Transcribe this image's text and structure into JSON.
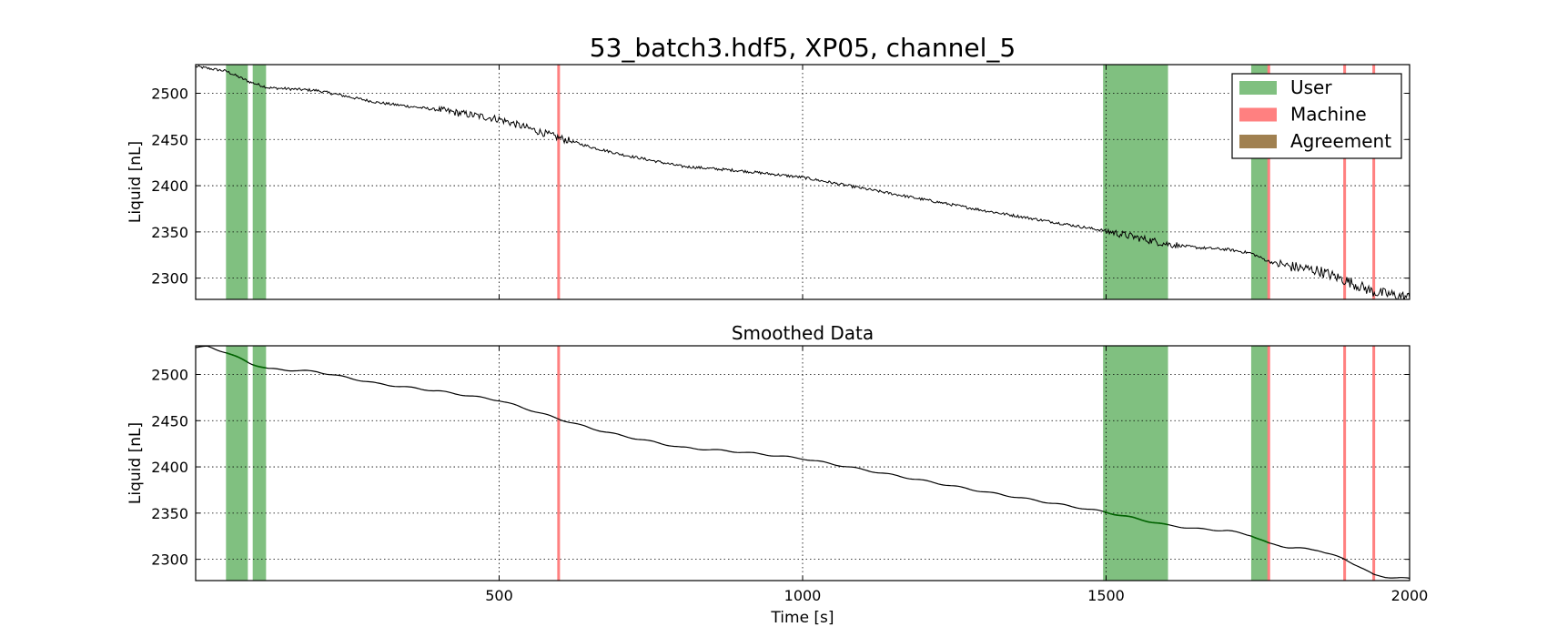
{
  "title": "53_batch3.hdf5, XP05, channel_5",
  "legend": {
    "placement": "top-right",
    "entries": [
      {
        "label": "User",
        "color": "#80c080"
      },
      {
        "label": "Machine",
        "color": "#ff8080"
      },
      {
        "label": "Agreement",
        "color": "#a08050"
      }
    ]
  },
  "chart_data": [
    {
      "type": "line",
      "title": "",
      "xlabel": "",
      "ylabel": "Liquid [nL]",
      "xlim": [
        0,
        2000
      ],
      "ylim": [
        2277,
        2531
      ],
      "xticks": [
        500,
        1000,
        1500,
        2000
      ],
      "yticks": [
        2300,
        2350,
        2400,
        2450,
        2500
      ],
      "show_xtick_labels": false,
      "grid": true,
      "noisy": true,
      "user_spans": [
        [
          50,
          86
        ],
        [
          94,
          116
        ],
        [
          1495,
          1602
        ],
        [
          1739,
          1768
        ]
      ],
      "machine_lines": [
        598,
        1768,
        1893,
        1941
      ],
      "series": [
        {
          "x": [
            0,
            50,
            90,
            120,
            200,
            300,
            400,
            500,
            598,
            650,
            700,
            800,
            900,
            1000,
            1100,
            1200,
            1300,
            1400,
            1500,
            1550,
            1600,
            1650,
            1700,
            1739,
            1768,
            1800,
            1850,
            1893,
            1941,
            2000
          ],
          "y": [
            2529,
            2524,
            2512,
            2506,
            2503,
            2490,
            2482,
            2472,
            2452,
            2442,
            2434,
            2421,
            2416,
            2409,
            2397,
            2385,
            2373,
            2362,
            2351,
            2344,
            2337,
            2333,
            2331,
            2327,
            2318,
            2313,
            2308,
            2298,
            2285,
            2279
          ]
        }
      ]
    },
    {
      "type": "line",
      "title": "Smoothed Data",
      "xlabel": "Time [s]",
      "ylabel": "Liquid [nL]",
      "xlim": [
        0,
        2000
      ],
      "ylim": [
        2277,
        2531
      ],
      "xticks": [
        500,
        1000,
        1500,
        2000
      ],
      "yticks": [
        2300,
        2350,
        2400,
        2450,
        2500
      ],
      "show_xtick_labels": true,
      "grid": true,
      "noisy": false,
      "user_spans": [
        [
          50,
          86
        ],
        [
          94,
          116
        ],
        [
          1495,
          1602
        ],
        [
          1739,
          1768
        ]
      ],
      "machine_lines": [
        598,
        1768,
        1893,
        1941
      ],
      "series": [
        {
          "x": [
            0,
            20,
            50,
            90,
            120,
            200,
            300,
            400,
            500,
            598,
            650,
            700,
            800,
            900,
            1000,
            1100,
            1200,
            1300,
            1400,
            1500,
            1550,
            1600,
            1650,
            1700,
            1739,
            1768,
            1800,
            1850,
            1893,
            1915,
            1941,
            1960,
            2000
          ],
          "y": [
            2529,
            2530,
            2524,
            2512,
            2506,
            2503,
            2490,
            2482,
            2472,
            2452,
            2442,
            2434,
            2421,
            2416,
            2409,
            2397,
            2385,
            2373,
            2362,
            2351,
            2344,
            2337,
            2333,
            2331,
            2326,
            2317,
            2313,
            2310,
            2300,
            2293,
            2283,
            2281,
            2279
          ]
        }
      ]
    }
  ]
}
